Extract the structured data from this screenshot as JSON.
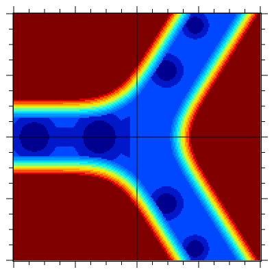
{
  "chart_data": {
    "type": "contour",
    "colors": [
      "#00008f",
      "#0018c8",
      "#0048ff",
      "#0070ff",
      "#0098ff",
      "#00c8ff",
      "#10f0f0",
      "#60ffa0",
      "#c0ff40",
      "#ffe000",
      "#ffa000",
      "#ff5000",
      "#e00000",
      "#800000"
    ]
  }
}
